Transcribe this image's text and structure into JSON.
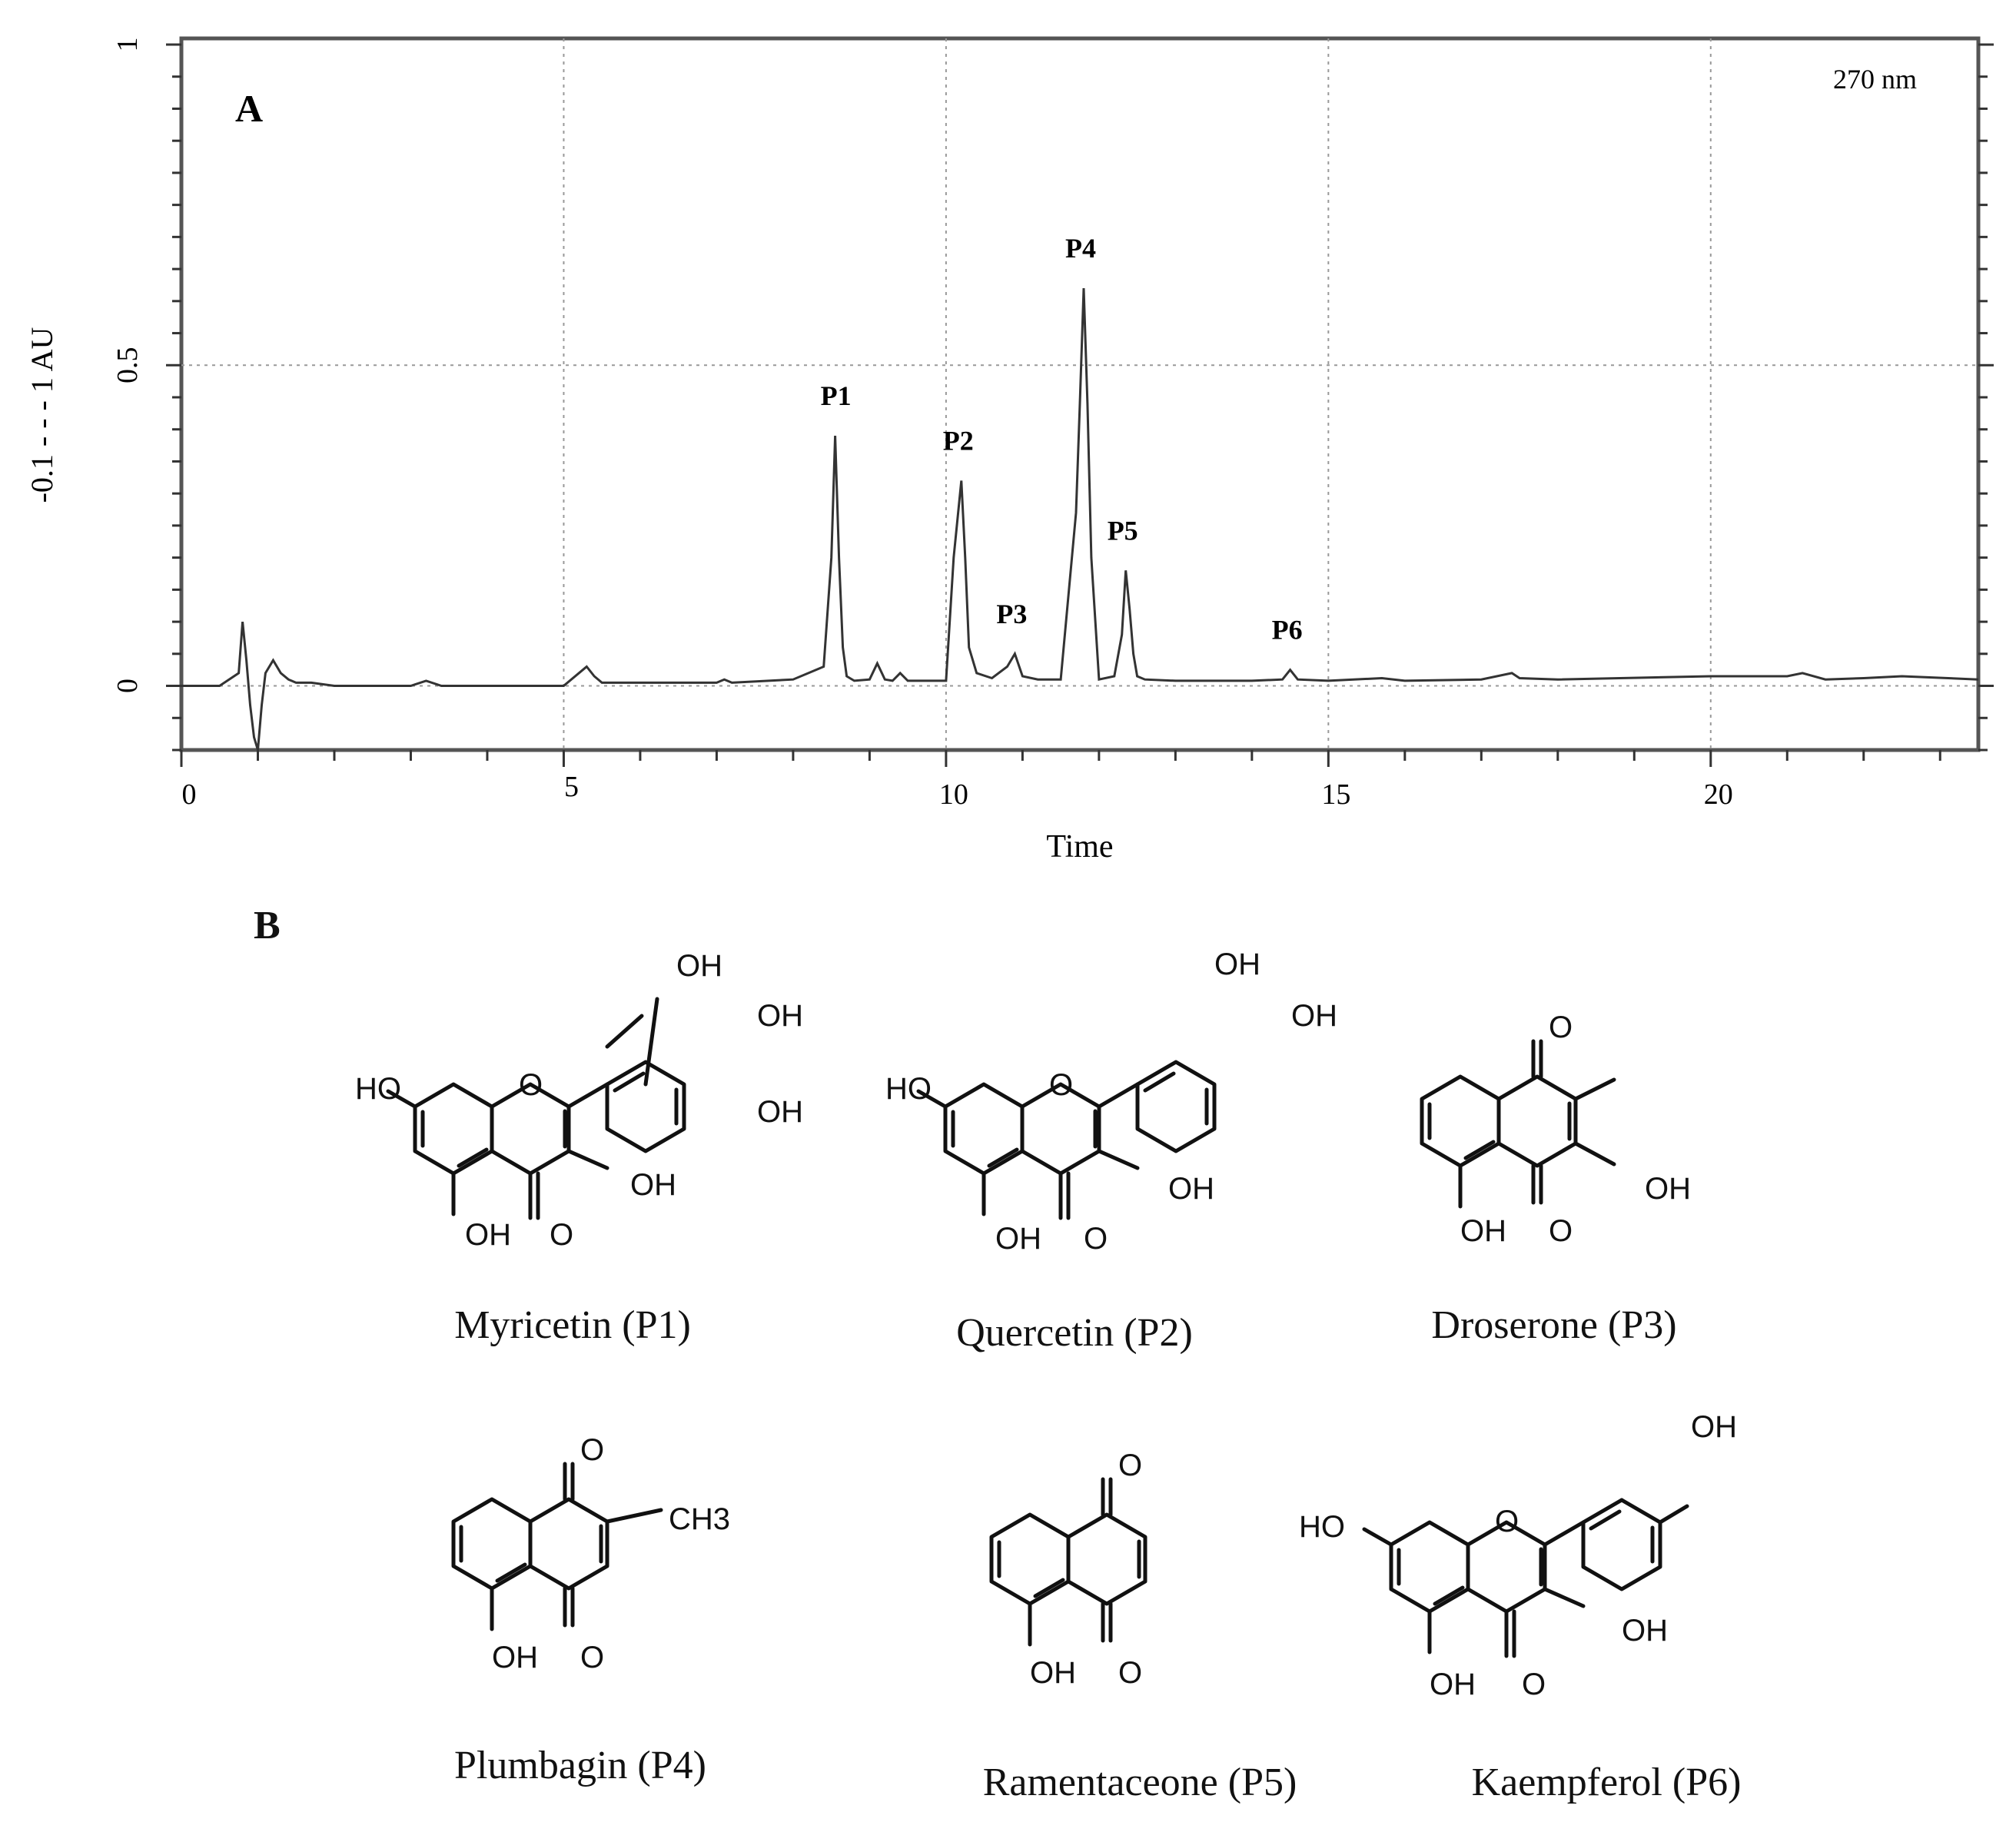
{
  "chart_data": {
    "type": "line",
    "panel_label": "A",
    "wavelength_label": "270 nm",
    "xlabel": "Time",
    "ylabel": "-0.1 - - - 1 AU",
    "xlim": [
      0,
      23.5
    ],
    "ylim": [
      -0.1,
      1
    ],
    "x_ticks": [
      0,
      5,
      10,
      15,
      20
    ],
    "y_ticks": [
      0,
      0.5,
      1
    ],
    "grid": true,
    "trace": {
      "x": [
        0,
        0.5,
        0.75,
        0.8,
        0.85,
        0.9,
        0.95,
        1.0,
        1.05,
        1.1,
        1.2,
        1.3,
        1.4,
        1.5,
        1.7,
        2.0,
        3.0,
        3.2,
        3.4,
        5.0,
        5.3,
        5.4,
        5.5,
        6.0,
        7.0,
        7.1,
        7.2,
        8.0,
        8.2,
        8.4,
        8.5,
        8.55,
        8.6,
        8.65,
        8.7,
        8.8,
        9.0,
        9.1,
        9.2,
        9.3,
        9.4,
        9.5,
        9.6,
        10.0,
        10.1,
        10.2,
        10.25,
        10.3,
        10.4,
        10.6,
        10.8,
        10.9,
        11.0,
        11.2,
        11.5,
        11.7,
        11.75,
        11.8,
        11.85,
        11.9,
        12.0,
        12.2,
        12.3,
        12.35,
        12.4,
        12.45,
        12.5,
        12.6,
        13.0,
        14.0,
        14.4,
        14.5,
        14.6,
        15.0,
        15.7,
        16.0,
        17.0,
        17.4,
        17.5,
        18.0,
        20.0,
        21.0,
        21.2,
        21.5,
        22.0,
        22.5,
        23.5
      ],
      "y": [
        0,
        0,
        0.02,
        0.1,
        0.04,
        -0.03,
        -0.08,
        -0.1,
        -0.03,
        0.02,
        0.04,
        0.02,
        0.01,
        0.005,
        0.005,
        0,
        0,
        0.008,
        0,
        0,
        0.03,
        0.015,
        0.005,
        0.005,
        0.005,
        0.01,
        0.005,
        0.01,
        0.02,
        0.03,
        0.2,
        0.39,
        0.2,
        0.06,
        0.015,
        0.008,
        0.01,
        0.035,
        0.01,
        0.008,
        0.02,
        0.008,
        0.008,
        0.008,
        0.2,
        0.32,
        0.2,
        0.06,
        0.02,
        0.012,
        0.03,
        0.05,
        0.015,
        0.01,
        0.01,
        0.27,
        0.44,
        0.62,
        0.44,
        0.2,
        0.01,
        0.015,
        0.08,
        0.18,
        0.12,
        0.05,
        0.015,
        0.01,
        0.008,
        0.008,
        0.01,
        0.025,
        0.01,
        0.008,
        0.012,
        0.008,
        0.01,
        0.02,
        0.012,
        0.01,
        0.015,
        0.015,
        0.02,
        0.01,
        0.012,
        0.015,
        0.01
      ]
    },
    "peaks": [
      {
        "label": "P1",
        "x": 8.6,
        "y": 0.39
      },
      {
        "label": "P2",
        "x": 10.2,
        "y": 0.32
      },
      {
        "label": "P3",
        "x": 10.9,
        "y": 0.05
      },
      {
        "label": "P4",
        "x": 11.8,
        "y": 0.62
      },
      {
        "label": "P5",
        "x": 12.35,
        "y": 0.18
      },
      {
        "label": "P6",
        "x": 14.5,
        "y": 0.025
      }
    ]
  },
  "structures_panel_label": "B",
  "compounds": [
    {
      "name": "Myricetin (P1)"
    },
    {
      "name": "Quercetin (P2)"
    },
    {
      "name": "Droserone (P3)"
    },
    {
      "name": "Plumbagin (P4)"
    },
    {
      "name": "Ramentaceone (P5)"
    },
    {
      "name": "Kaempferol (P6)"
    }
  ],
  "atoms": {
    "oh": "OH",
    "ho": "HO",
    "o": "O",
    "ch3": "CH3"
  }
}
